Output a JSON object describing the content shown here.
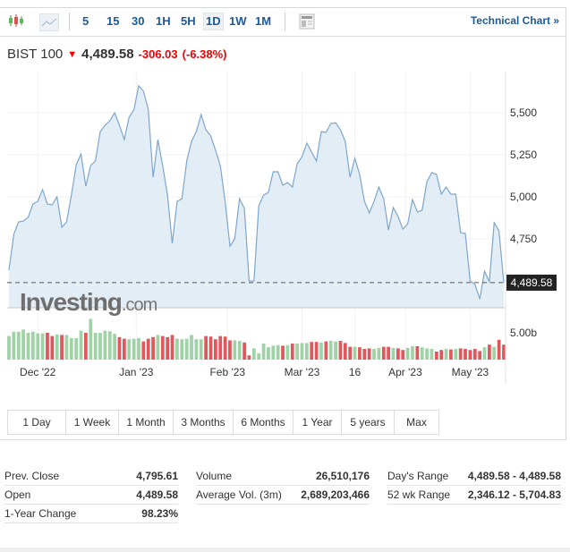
{
  "toolbar": {
    "icons": [
      "candlestick-icon",
      "area-chart-icon",
      "layout-icon"
    ],
    "intervals": [
      "5",
      "15",
      "30",
      "1H",
      "5H",
      "1D",
      "1W",
      "1M"
    ],
    "active_interval": "1D",
    "technical_chart": "Technical Chart »"
  },
  "instrument": {
    "name": "BIST 100",
    "price": "4,489.58",
    "change": "-306.03",
    "change_pct": "(-6.38%)",
    "direction": "down"
  },
  "colors": {
    "up": "#9fd3a6",
    "down": "#e0585c",
    "line": "#7ea6cc",
    "fill": "#e3edf5",
    "link": "#1a5a9e"
  },
  "chart_data": {
    "type": "area",
    "y_ticks": [
      "5,500",
      "5,250",
      "5,000",
      "4,750"
    ],
    "y_tick_values": [
      5500,
      5250,
      5000,
      4750
    ],
    "last_price_label": "4,489.58",
    "last_price": 4489.58,
    "x_ticks": [
      {
        "label": "Dec '22",
        "at": 6
      },
      {
        "label": "Jan '23",
        "at": 26.5
      },
      {
        "label": "Feb '23",
        "at": 45.5
      },
      {
        "label": "Mar '23",
        "at": 61
      },
      {
        "label": "16",
        "at": 72
      },
      {
        "label": "Apr '23",
        "at": 82.5
      },
      {
        "label": "May '23",
        "at": 96
      }
    ],
    "values": [
      4564,
      4776,
      4851,
      4856,
      4878,
      4957,
      4973,
      5042,
      4957,
      4952,
      5000,
      4819,
      4851,
      5010,
      5191,
      5255,
      5063,
      5186,
      5213,
      5388,
      5425,
      5452,
      5500,
      5425,
      5340,
      5473,
      5516,
      5660,
      5628,
      5521,
      5117,
      5340,
      5186,
      5010,
      4723,
      4973,
      4989,
      5213,
      5330,
      5388,
      5489,
      5399,
      5362,
      5277,
      5186,
      4973,
      4707,
      4750,
      4989,
      4931,
      4500,
      4500,
      4947,
      5010,
      5026,
      5149,
      5149,
      5069,
      5085,
      5058,
      5197,
      5239,
      5319,
      5266,
      5213,
      5388,
      5383,
      5436,
      5441,
      5399,
      5330,
      5117,
      5229,
      5133,
      4973,
      4904,
      4973,
      5058,
      4989,
      4803,
      4936,
      4883,
      4808,
      4840,
      4984,
      4910,
      4920,
      5090,
      5144,
      5133,
      5016,
      5058,
      5016,
      5016,
      4787,
      4782,
      4500,
      4479,
      4393,
      4558,
      4495,
      4846,
      4798,
      4489.58
    ],
    "volume_tick": "5.00b",
    "volume_tick_value": 5.0,
    "volume_b": [
      4.4,
      5.2,
      5.2,
      5.6,
      5.0,
      5.2,
      4.9,
      4.9,
      5.0,
      4.4,
      4.7,
      4.6,
      4.6,
      4.0,
      4.0,
      5.4,
      5.0,
      7.6,
      5.0,
      5.0,
      5.4,
      5.3,
      4.8,
      4.2,
      3.9,
      3.8,
      3.9,
      4.0,
      3.4,
      3.9,
      4.2,
      4.6,
      4.4,
      4.2,
      4.6,
      3.9,
      3.8,
      3.9,
      4.6,
      3.8,
      3.8,
      4.4,
      4.3,
      3.8,
      4.4,
      4.3,
      3.6,
      3.6,
      3.5,
      3.2,
      0.8,
      2.1,
      1.2,
      3.0,
      2.3,
      2.6,
      2.7,
      2.6,
      2.7,
      3.0,
      3.0,
      3.1,
      3.1,
      3.3,
      3.3,
      3.2,
      3.4,
      3.5,
      3.4,
      3.5,
      3.1,
      2.4,
      2.4,
      2.3,
      2.0,
      2.1,
      2.0,
      2.2,
      2.4,
      2.4,
      2.2,
      2.1,
      1.8,
      2.2,
      2.5,
      2.5,
      2.3,
      2.1,
      2.0,
      1.5,
      1.8,
      2.0,
      1.9,
      2.0,
      2.1,
      2.0,
      1.8,
      2.0,
      1.6,
      2.3,
      2.8,
      2.4,
      3.7,
      2.8
    ],
    "watermark": "Investing.com",
    "grid": true
  },
  "ranges": [
    "1 Day",
    "1 Week",
    "1 Month",
    "3 Months",
    "6 Months",
    "1 Year",
    "5 years",
    "Max"
  ],
  "stats": {
    "col1": [
      {
        "label": "Prev. Close",
        "value": "4,795.61"
      },
      {
        "label": "Open",
        "value": "4,489.58"
      },
      {
        "label": "1-Year Change",
        "value": "98.23%"
      }
    ],
    "col2": [
      {
        "label": "Volume",
        "value": "26,510,176"
      },
      {
        "label": "Average Vol. (3m)",
        "value": "2,689,203,466"
      }
    ],
    "col3": [
      {
        "label": "Day's Range",
        "value": "4,489.58 - 4,489.58"
      },
      {
        "label": "52 wk Range",
        "value": "2,346.12 - 5,704.83"
      }
    ]
  }
}
